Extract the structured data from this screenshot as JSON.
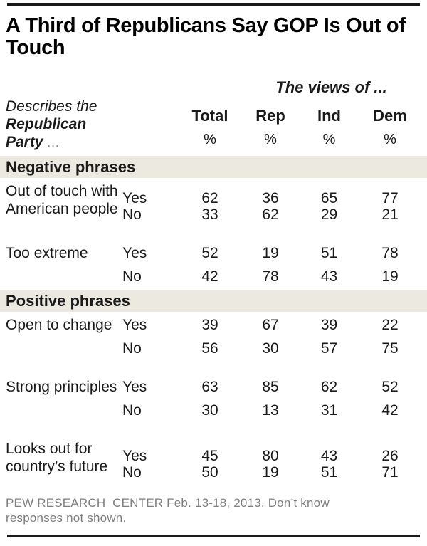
{
  "chart_data": {
    "type": "table",
    "title": "A Third of Republicans Say GOP Is Out of Touch",
    "group_header": "The views of ...",
    "row_header_lines": [
      "Describes the",
      "Republican",
      "Party"
    ],
    "row_header_ellipsis": "...",
    "columns": [
      "Total",
      "Rep",
      "Ind",
      "Dem"
    ],
    "column_units": [
      "%",
      "%",
      "%",
      "%"
    ],
    "response_labels": {
      "yes": "Yes",
      "no": "No"
    },
    "sections": [
      {
        "header": "Negative phrases",
        "rows": [
          {
            "phrase": "Out of touch with American people",
            "phrase_lines": [
              "Out of touch with",
              "American people"
            ],
            "yes": [
              62,
              36,
              65,
              77
            ],
            "no": [
              33,
              62,
              29,
              21
            ]
          },
          {
            "phrase": "Too extreme",
            "phrase_lines": [
              "Too extreme"
            ],
            "yes": [
              52,
              19,
              51,
              78
            ],
            "no": [
              42,
              78,
              43,
              19
            ]
          }
        ]
      },
      {
        "header": "Positive phrases",
        "rows": [
          {
            "phrase": "Open to change",
            "phrase_lines": [
              "Open to change"
            ],
            "yes": [
              39,
              67,
              39,
              22
            ],
            "no": [
              56,
              30,
              57,
              75
            ]
          },
          {
            "phrase": "Strong principles",
            "phrase_lines": [
              "Strong principles"
            ],
            "yes": [
              63,
              85,
              62,
              52
            ],
            "no": [
              30,
              13,
              31,
              42
            ]
          },
          {
            "phrase": "Looks out for country’s future",
            "phrase_lines": [
              "Looks out for",
              "country’s future"
            ],
            "yes": [
              45,
              80,
              43,
              26
            ],
            "no": [
              50,
              19,
              51,
              71
            ]
          }
        ]
      }
    ],
    "source_note": "PEW RESEARCH  CENTER Feb. 13-18, 2013. Don’t know responses not shown."
  },
  "colors": {
    "ink": "#1a1a1a",
    "title": "#000000",
    "section-bg": "#ece9e0",
    "muted": "#7e7e7e",
    "rule": "#1a1a1a"
  }
}
